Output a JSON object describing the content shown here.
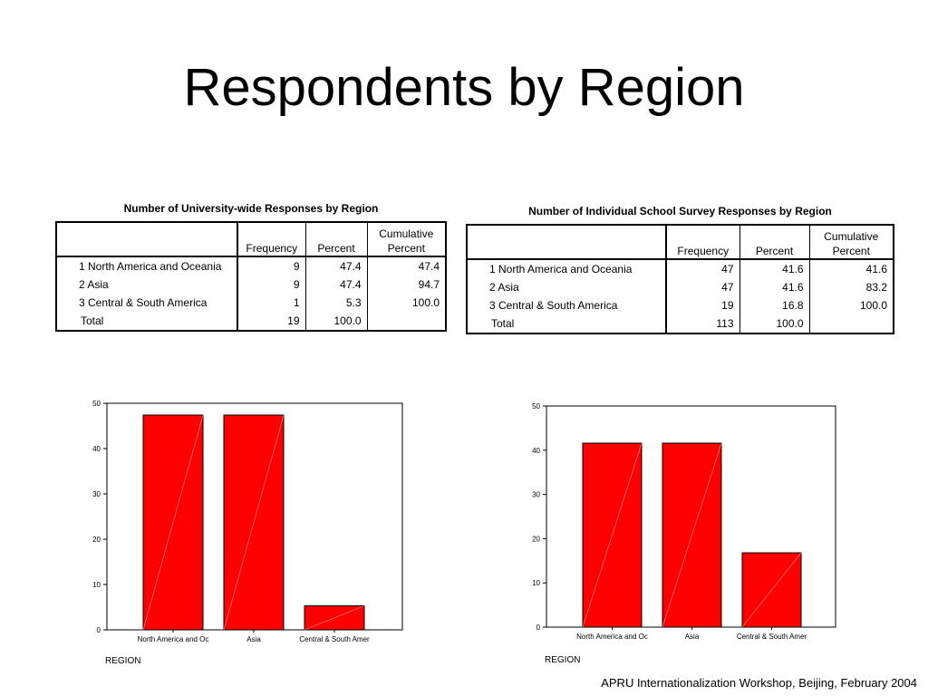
{
  "slide": {
    "title": "Respondents by Region",
    "footer": "APRU Internationalization Workshop, Beijing, February 2004"
  },
  "tables": [
    {
      "title": "Number of University-wide Responses by Region",
      "headers": [
        "",
        "Frequency",
        "Percent",
        "Cumulative\nPercent"
      ],
      "rows": [
        {
          "label": "1  North America and Oceania",
          "frequency": "9",
          "percent": "47.4",
          "cumulative": "47.4"
        },
        {
          "label": "2  Asia",
          "frequency": "9",
          "percent": "47.4",
          "cumulative": "94.7"
        },
        {
          "label": "3  Central & South America",
          "frequency": "1",
          "percent": "5.3",
          "cumulative": "100.0"
        }
      ],
      "total": {
        "label": "Total",
        "frequency": "19",
        "percent": "100.0"
      }
    },
    {
      "title": "Number of Individual School Survey Responses by Region",
      "headers": [
        "",
        "Frequency",
        "Percent",
        "Cumulative\nPercent"
      ],
      "rows": [
        {
          "label": "1  North America and Oceania",
          "frequency": "47",
          "percent": "41.6",
          "cumulative": "41.6"
        },
        {
          "label": "2  Asia",
          "frequency": "47",
          "percent": "41.6",
          "cumulative": "83.2"
        },
        {
          "label": "3  Central & South America",
          "frequency": "19",
          "percent": "16.8",
          "cumulative": "100.0"
        }
      ],
      "total": {
        "label": "Total",
        "frequency": "113",
        "percent": "100.0"
      }
    }
  ],
  "chart_data": [
    {
      "type": "bar",
      "title": "",
      "categories": [
        "North America and Oc",
        "Asia",
        "Central & South Amer"
      ],
      "values": [
        47.4,
        47.4,
        5.3
      ],
      "xlabel": "REGION",
      "ylabel": "",
      "ylim": [
        0,
        50
      ],
      "yticks": [
        0,
        10,
        20,
        30,
        40,
        50
      ],
      "bar_color": "#ff0000",
      "grid": false
    },
    {
      "type": "bar",
      "title": "",
      "categories": [
        "North America and Oc",
        "Asia",
        "Central & South Amer"
      ],
      "values": [
        41.6,
        41.6,
        16.8
      ],
      "xlabel": "REGION",
      "ylabel": "",
      "ylim": [
        0,
        50
      ],
      "yticks": [
        0,
        10,
        20,
        30,
        40,
        50
      ],
      "bar_color": "#ff0000",
      "grid": false
    }
  ]
}
